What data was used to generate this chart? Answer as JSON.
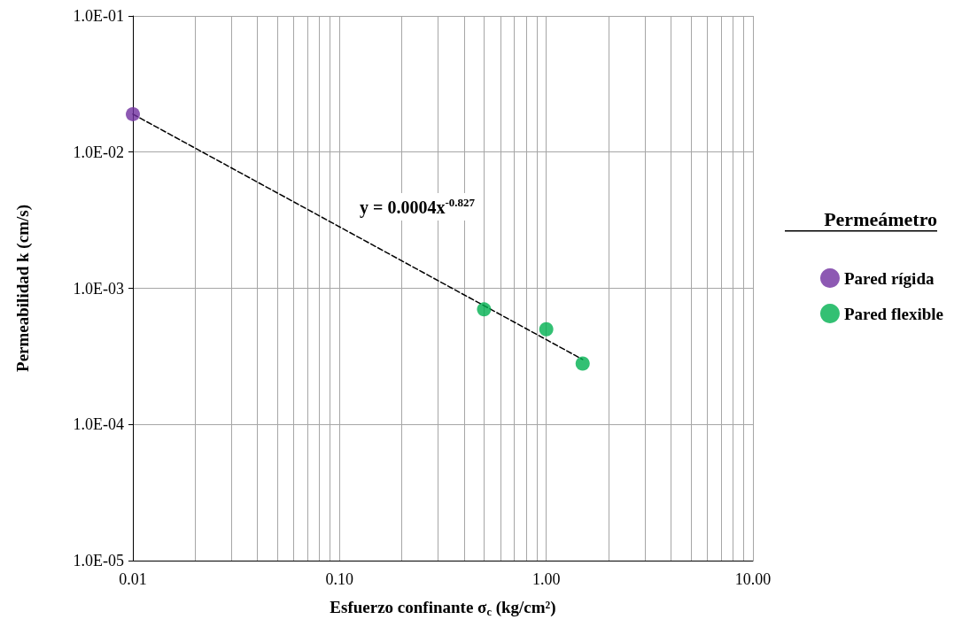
{
  "chart_data": {
    "type": "scatter",
    "xlabel": "Esfuerzo confinante σ$_{c}$ (kg/cm²)",
    "ylabel": "Permeabilidad k (cm/s)",
    "legend_title": "Permeámetro",
    "log": "xy",
    "grid": true,
    "legend": "right",
    "marker": "circle",
    "xlim": [
      0.01,
      10
    ],
    "xticks": [
      {
        "value": 0.01,
        "label": "0.01"
      },
      {
        "value": 0.1,
        "label": "0.10"
      },
      {
        "value": 1,
        "label": "1.00"
      },
      {
        "value": 10,
        "label": "10.00"
      }
    ],
    "ylim": [
      1e-05,
      0.1
    ],
    "yticks": [
      {
        "value": 1e-05,
        "label": "1.0E-05"
      },
      {
        "value": 0.0001,
        "label": "1.0E-04"
      },
      {
        "value": 0.001,
        "label": "1.0E-03"
      },
      {
        "value": 0.01,
        "label": "1.0E-02"
      },
      {
        "value": 0.1,
        "label": "1.0E-01"
      }
    ],
    "series": [
      {
        "name": "Pared rígida",
        "color": "#7030a0",
        "x": [
          0.01
        ],
        "values": [
          0.019
        ]
      },
      {
        "name": "Pared flexible",
        "color": "#00b050",
        "x": [
          0.5,
          1.0,
          1.5
        ],
        "values": [
          0.0007,
          0.0005,
          0.00028
        ]
      },
      {
        "type": "line",
        "color": "#000000",
        "line_style": "dashed",
        "marker": "none",
        "x": [
          0.01,
          1.5
        ],
        "values": [
          0.019,
          0.0003
        ]
      }
    ],
    "annotations": [
      "y = 0.0004x$^{-0.827}$"
    ]
  }
}
